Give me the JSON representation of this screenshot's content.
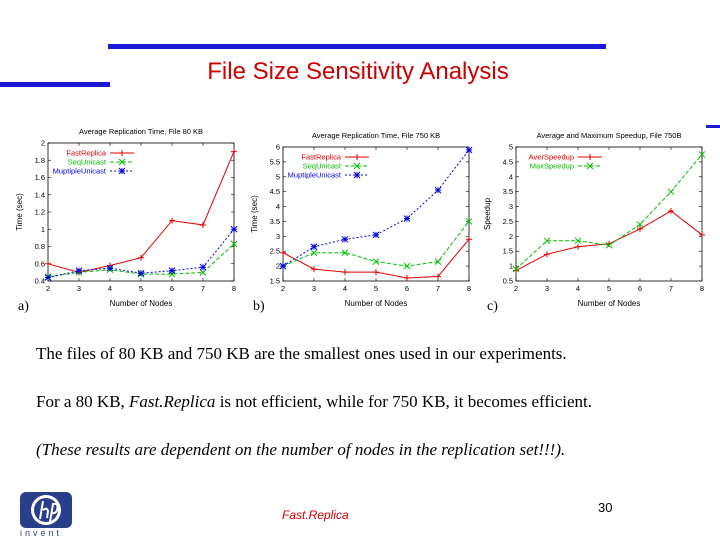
{
  "slide": {
    "title": "File Size  Sensitivity Analysis",
    "footer_center": "Fast.Replica",
    "page_number": "30",
    "logo_text": "invent",
    "paragraph1": "The files of 80 KB and 750 KB are the smallest ones used in our experiments.",
    "paragraph2_prefix": "For a 80 KB, ",
    "paragraph2_italic": "Fast.Replica",
    "paragraph2_suffix": " is not efficient, while for 750 KB, it becomes efficient.",
    "paragraph3": "(These results are dependent on the number of nodes in the replication set!!!).",
    "colors": {
      "title": "#cc0000",
      "accent_bars": "#1a1ad6",
      "logo": "#2a3f8a"
    }
  },
  "chart_data": [
    {
      "type": "line",
      "panel_label": "a)",
      "title": "Average Replication Time, File 80 KB",
      "xlabel": "Number of Nodes",
      "ylabel": "Time (sec)",
      "x": [
        2,
        3,
        4,
        5,
        6,
        7,
        8
      ],
      "xlim": [
        2,
        8
      ],
      "ylim": [
        0.4,
        2
      ],
      "yticks": [
        0.4,
        0.6,
        0.8,
        1,
        1.2,
        1.4,
        1.6,
        1.8,
        2
      ],
      "legend": "top-left",
      "series": [
        {
          "name": "FastReplica",
          "color": "#e00000",
          "marker": "+",
          "dash": "",
          "values": [
            0.6,
            0.5,
            0.58,
            0.67,
            1.1,
            1.05,
            1.9
          ]
        },
        {
          "name": "SeqUnicast",
          "color": "#00c000",
          "marker": "x",
          "dash": "4,2",
          "values": [
            0.45,
            0.5,
            0.53,
            0.48,
            0.48,
            0.5,
            0.83
          ]
        },
        {
          "name": "MuptipleUnicast",
          "color": "#0000e0",
          "marker": "*",
          "dash": "2,2",
          "values": [
            0.44,
            0.52,
            0.55,
            0.49,
            0.52,
            0.56,
            1.0
          ]
        }
      ]
    },
    {
      "type": "line",
      "panel_label": "b)",
      "title": "Average Replication Time, File 750 KB",
      "xlabel": "Number of Nodes",
      "ylabel": "Time (sec)",
      "x": [
        2,
        3,
        4,
        5,
        6,
        7,
        8
      ],
      "xlim": [
        2,
        8
      ],
      "ylim": [
        1.5,
        6
      ],
      "yticks": [
        1.5,
        2,
        2.5,
        3,
        3.5,
        4,
        4.5,
        5,
        5.5,
        6
      ],
      "legend": "top-left",
      "series": [
        {
          "name": "FastReplica",
          "color": "#e00000",
          "marker": "+",
          "dash": "",
          "values": [
            2.45,
            1.9,
            1.8,
            1.8,
            1.6,
            1.65,
            2.9
          ]
        },
        {
          "name": "SeqUnicast",
          "color": "#00c000",
          "marker": "x",
          "dash": "4,2",
          "values": [
            2.0,
            2.45,
            2.45,
            2.15,
            2.0,
            2.15,
            3.5
          ]
        },
        {
          "name": "MuptipleUnicast",
          "color": "#0000e0",
          "marker": "*",
          "dash": "2,2",
          "values": [
            2.0,
            2.65,
            2.9,
            3.05,
            3.6,
            4.55,
            5.9
          ]
        }
      ]
    },
    {
      "type": "line",
      "panel_label": "c)",
      "title": "Average and Maximum Speedup, File 750B",
      "xlabel": "Number of Nodes",
      "ylabel": "Speedup",
      "x": [
        2,
        3,
        4,
        5,
        6,
        7,
        8
      ],
      "xlim": [
        2,
        8
      ],
      "ylim": [
        0.5,
        5
      ],
      "yticks": [
        0.5,
        1,
        1.5,
        2,
        2.5,
        3,
        3.5,
        4,
        4.5,
        5
      ],
      "legend": "top-left",
      "series": [
        {
          "name": "AverSpeedup",
          "color": "#e00000",
          "marker": "+",
          "dash": "",
          "values": [
            0.85,
            1.4,
            1.65,
            1.75,
            2.25,
            2.85,
            2.05
          ]
        },
        {
          "name": "MaxSpeedup",
          "color": "#00c000",
          "marker": "x",
          "dash": "4,2",
          "values": [
            0.9,
            1.85,
            1.85,
            1.7,
            2.4,
            3.5,
            4.75
          ]
        }
      ]
    }
  ]
}
